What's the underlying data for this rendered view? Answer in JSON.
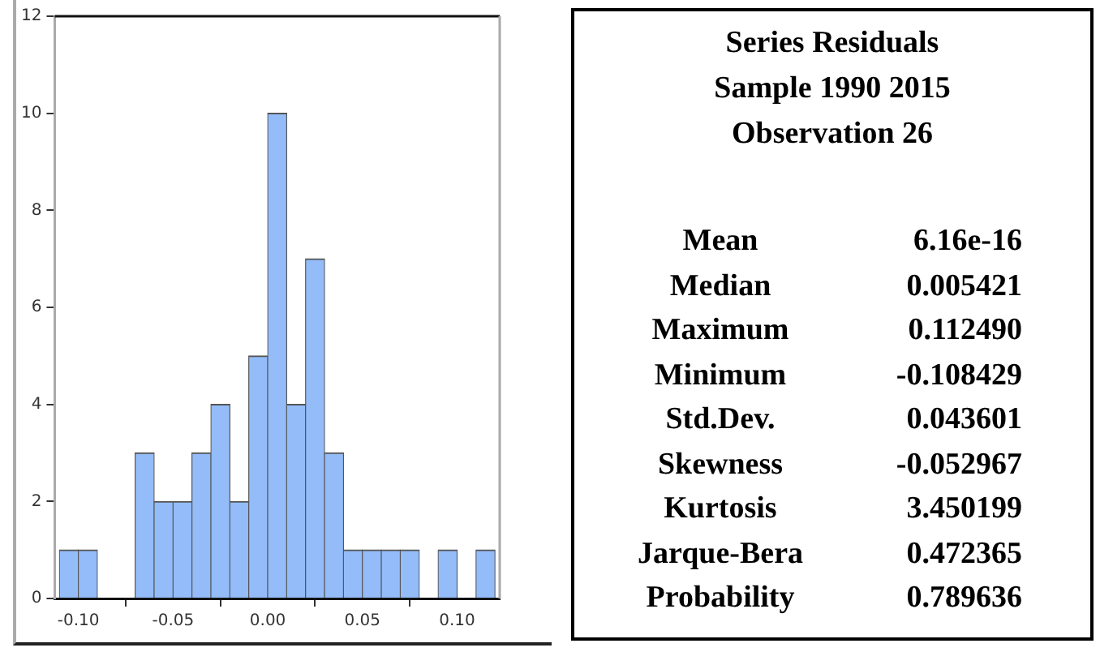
{
  "chart_data": {
    "type": "histogram",
    "bins": [
      -0.11,
      -0.1,
      -0.09,
      -0.08,
      -0.07,
      -0.06,
      -0.05,
      -0.04,
      -0.03,
      -0.02,
      -0.01,
      0.0,
      0.01,
      0.02,
      0.03,
      0.04,
      0.05,
      0.06,
      0.07,
      0.08,
      0.09,
      0.1,
      0.11,
      0.12
    ],
    "values": [
      1,
      1,
      0,
      0,
      3,
      2,
      2,
      3,
      4,
      2,
      5,
      10,
      4,
      7,
      3,
      1,
      1,
      1,
      1,
      0,
      1,
      0,
      1
    ],
    "color": "#93bcf9",
    "xlim": [
      -0.1125,
      0.1225
    ],
    "xticks": [
      {
        "value": -0.1,
        "label": "-0.10"
      },
      {
        "value": -0.05,
        "label": "-0.05"
      },
      {
        "value": 0,
        "label": "0.00"
      },
      {
        "value": 0.05,
        "label": "0.05"
      },
      {
        "value": 0.1,
        "label": "0.10"
      }
    ],
    "ylim": [
      0,
      12
    ],
    "yticks": [
      0,
      2,
      4,
      6,
      8,
      10,
      12
    ],
    "annotations": [
      "Series Residuals",
      "Sample 1990 2015",
      "Observation 26",
      "Mean",
      "6.16e-16",
      "Median",
      "0.005421",
      "Maximum",
      "0.112490",
      "Minimum",
      "-0.108429",
      "Std.Dev.",
      "0.043601",
      "Skewness",
      "-0.052967",
      "Kurtosis",
      "3.450199",
      "Jarque-Bera",
      "0.472365",
      "Probability",
      "0.789636"
    ]
  }
}
